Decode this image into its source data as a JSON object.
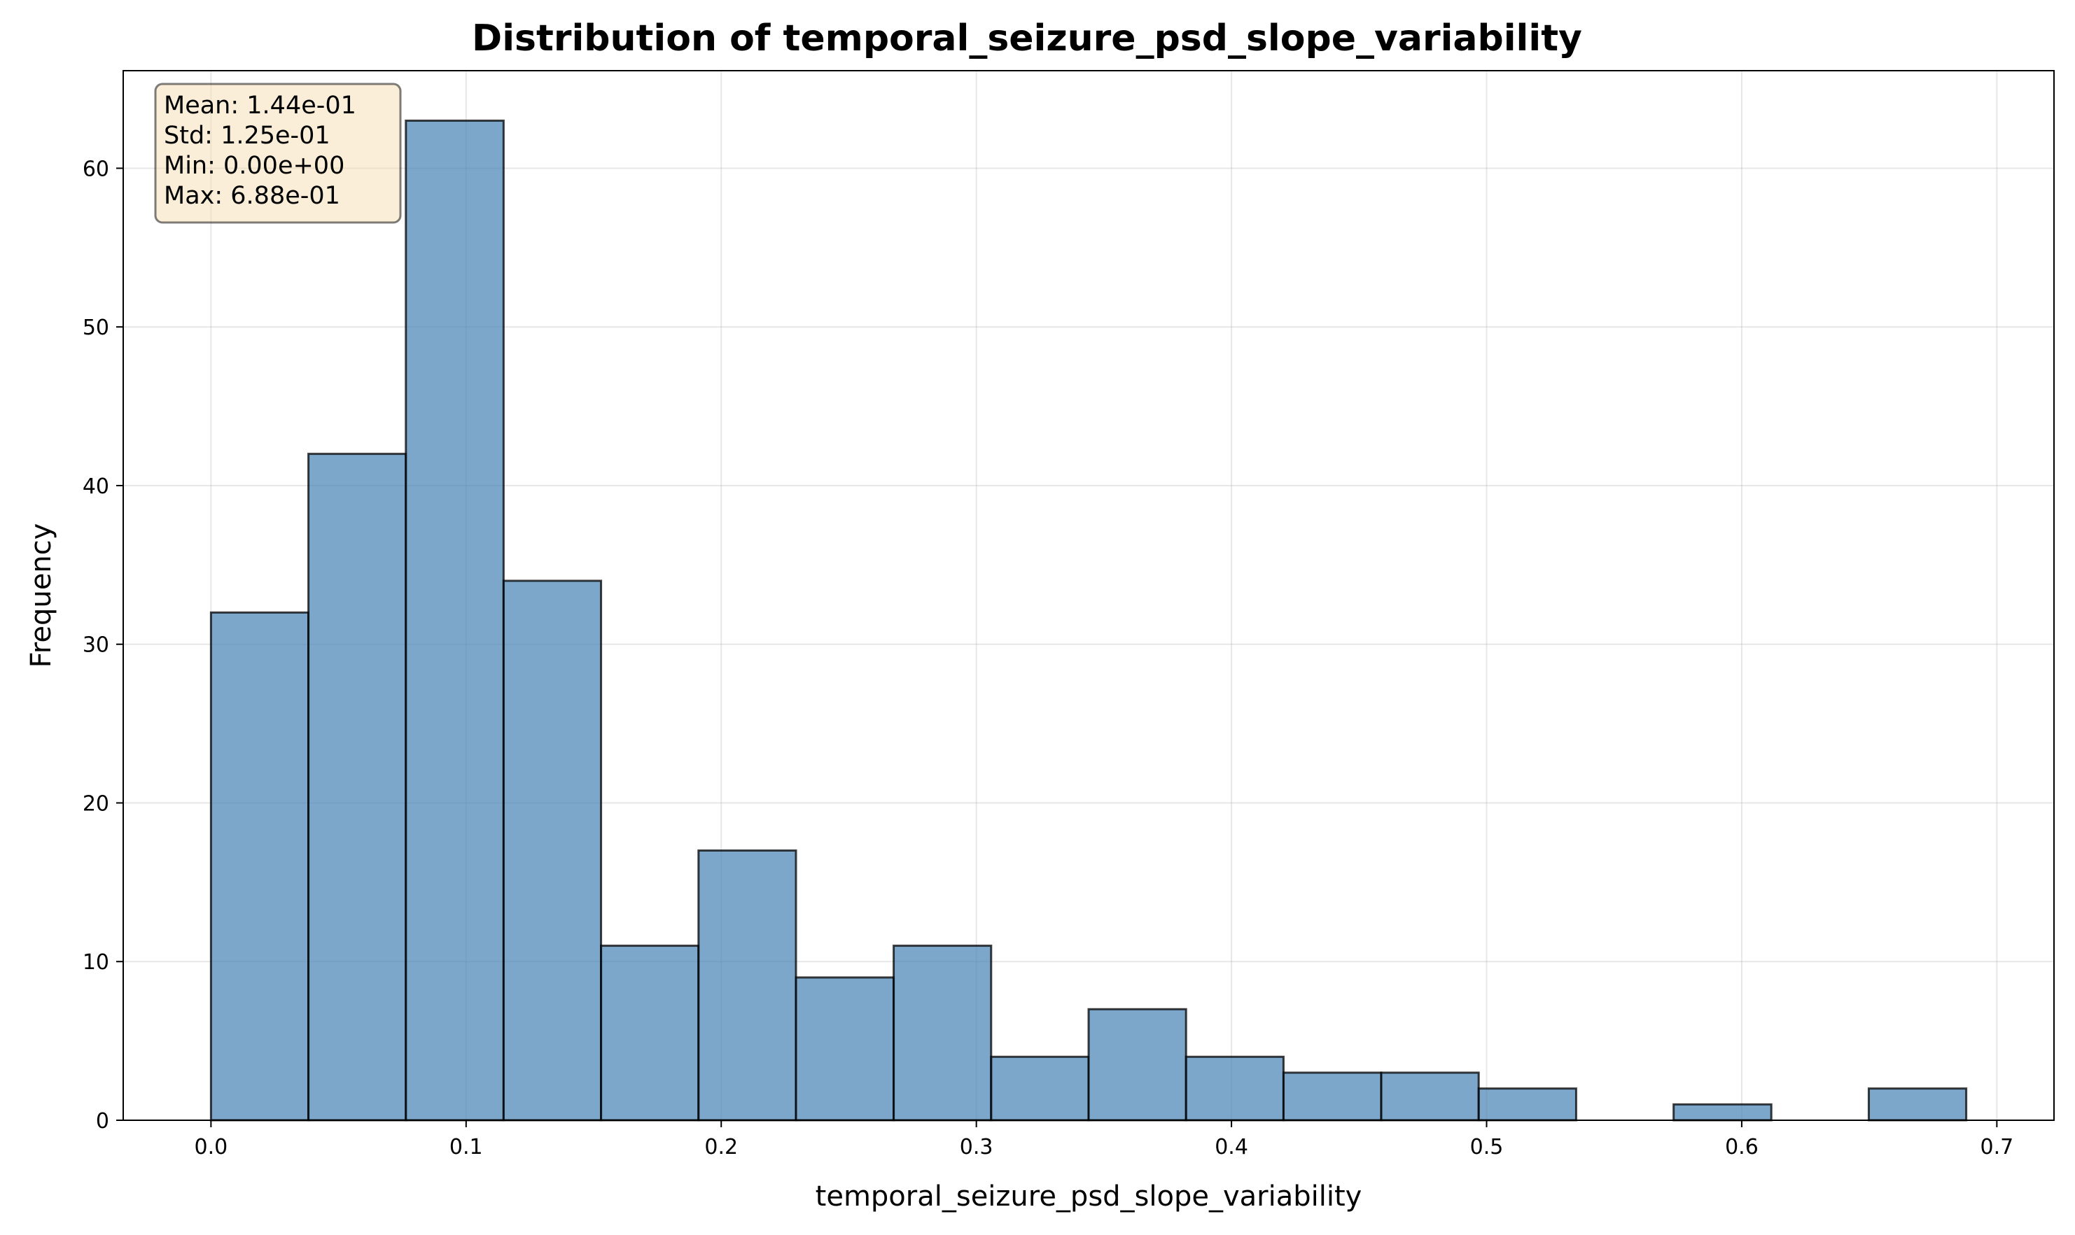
{
  "chart_data": {
    "type": "bar",
    "title": "Distribution of temporal_seizure_psd_slope_variability",
    "xlabel": "temporal_seizure_psd_slope_variability",
    "ylabel": "Frequency",
    "xlim": [
      -0.0344,
      0.7224
    ],
    "ylim": [
      0,
      66.15
    ],
    "xticks": [
      0.0,
      0.1,
      0.2,
      0.3,
      0.4,
      0.5,
      0.6,
      0.7
    ],
    "xtick_labels": [
      "0.0",
      "0.1",
      "0.2",
      "0.3",
      "0.4",
      "0.5",
      "0.6",
      "0.7"
    ],
    "yticks": [
      0,
      10,
      20,
      30,
      40,
      50,
      60
    ],
    "ytick_labels": [
      "0",
      "10",
      "20",
      "30",
      "40",
      "50",
      "60"
    ],
    "grid": true,
    "bar_color": "#4682b4",
    "bin_edges": [
      0.0,
      0.0382,
      0.0764,
      0.1147,
      0.1529,
      0.1911,
      0.2293,
      0.2676,
      0.3058,
      0.344,
      0.3822,
      0.4204,
      0.4587,
      0.4969,
      0.5351,
      0.5733,
      0.6116,
      0.6498,
      0.688
    ],
    "values": [
      32,
      42,
      63,
      34,
      11,
      17,
      9,
      11,
      4,
      7,
      4,
      3,
      3,
      2,
      0,
      1,
      0,
      2
    ],
    "stats_box": {
      "lines": [
        "Mean: 1.44e-01",
        "Std: 1.25e-01",
        "Min: 0.00e+00",
        "Max: 6.88e-01"
      ],
      "position": "top-left"
    }
  }
}
